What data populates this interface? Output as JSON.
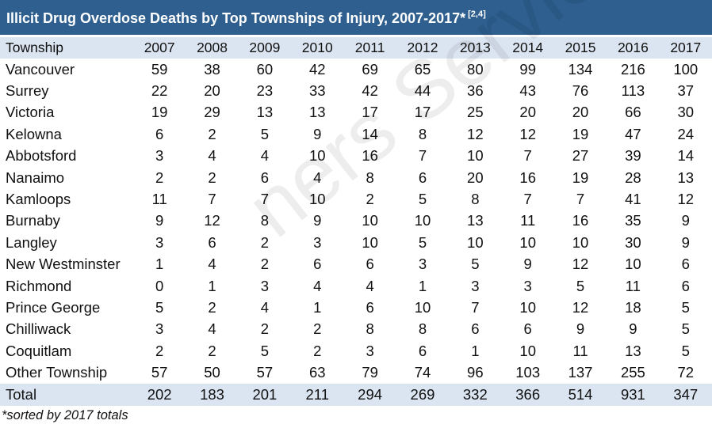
{
  "title": {
    "text": "Illicit Drug Overdose Deaths by Top Townships of Injury, 2007-2017*",
    "refs": "[2,4]"
  },
  "table": {
    "header": [
      "Township",
      "2007",
      "2008",
      "2009",
      "2010",
      "2011",
      "2012",
      "2013",
      "2014",
      "2015",
      "2016",
      "2017"
    ],
    "rows": [
      [
        "Vancouver",
        "59",
        "38",
        "60",
        "42",
        "69",
        "65",
        "80",
        "99",
        "134",
        "216",
        "100"
      ],
      [
        "Surrey",
        "22",
        "20",
        "23",
        "33",
        "42",
        "44",
        "36",
        "43",
        "76",
        "113",
        "37"
      ],
      [
        "Victoria",
        "19",
        "29",
        "13",
        "13",
        "17",
        "17",
        "25",
        "20",
        "20",
        "66",
        "30"
      ],
      [
        "Kelowna",
        "6",
        "2",
        "5",
        "9",
        "14",
        "8",
        "12",
        "12",
        "19",
        "47",
        "24"
      ],
      [
        "Abbotsford",
        "3",
        "4",
        "4",
        "10",
        "16",
        "7",
        "10",
        "7",
        "27",
        "39",
        "14"
      ],
      [
        "Nanaimo",
        "2",
        "2",
        "6",
        "4",
        "8",
        "6",
        "20",
        "16",
        "19",
        "28",
        "13"
      ],
      [
        "Kamloops",
        "11",
        "7",
        "7",
        "10",
        "2",
        "5",
        "8",
        "7",
        "7",
        "41",
        "12"
      ],
      [
        "Burnaby",
        "9",
        "12",
        "8",
        "9",
        "10",
        "10",
        "13",
        "11",
        "16",
        "35",
        "9"
      ],
      [
        "Langley",
        "3",
        "6",
        "2",
        "3",
        "10",
        "5",
        "10",
        "10",
        "10",
        "30",
        "9"
      ],
      [
        "New Westminster",
        "1",
        "4",
        "2",
        "6",
        "6",
        "3",
        "5",
        "9",
        "12",
        "10",
        "6"
      ],
      [
        "Richmond",
        "0",
        "1",
        "3",
        "4",
        "4",
        "1",
        "3",
        "3",
        "5",
        "11",
        "6"
      ],
      [
        "Prince George",
        "5",
        "2",
        "4",
        "1",
        "6",
        "10",
        "7",
        "10",
        "12",
        "18",
        "5"
      ],
      [
        "Chilliwack",
        "3",
        "4",
        "2",
        "2",
        "8",
        "8",
        "6",
        "6",
        "9",
        "9",
        "5"
      ],
      [
        "Coquitlam",
        "2",
        "2",
        "5",
        "2",
        "3",
        "6",
        "1",
        "10",
        "11",
        "13",
        "5"
      ],
      [
        "Other Township",
        "57",
        "50",
        "57",
        "63",
        "79",
        "74",
        "96",
        "103",
        "137",
        "255",
        "72"
      ]
    ],
    "total": [
      "Total",
      "202",
      "183",
      "201",
      "211",
      "294",
      "269",
      "332",
      "366",
      "514",
      "931",
      "347"
    ]
  },
  "footnote": "*sorted by 2017 totals",
  "watermark": "ners Service",
  "colors": {
    "title_bar": "#2e5f8f",
    "header_row": "#dbe5f1",
    "total_row": "#dbe5f1"
  }
}
